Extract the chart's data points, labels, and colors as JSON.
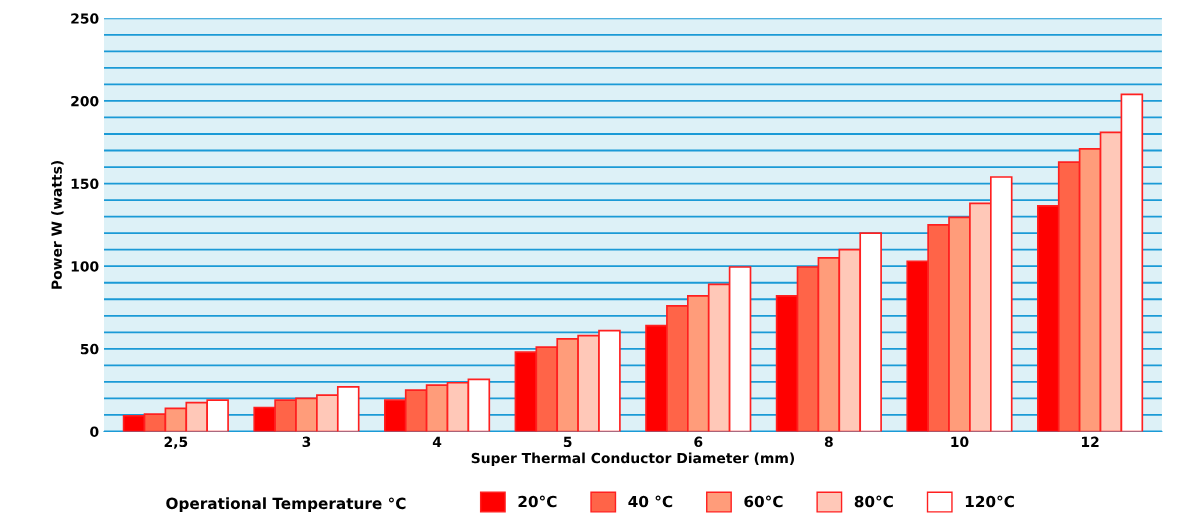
{
  "chart_data": {
    "type": "bar",
    "xlabel": "Super Thermal Conductor Diameter (mm)",
    "ylabel": "Power W (watts)",
    "legend_title": "Operational Temperature °C",
    "categories": [
      "2,5",
      "3",
      "4",
      "5",
      "6",
      "8",
      "10",
      "12"
    ],
    "series": [
      {
        "name": "20°C",
        "color": "#ff0000",
        "values": [
          9.5,
          14.5,
          19,
          48,
          64,
          82,
          103,
          136.5
        ]
      },
      {
        "name": "40 °C",
        "color": "#ff6448",
        "values": [
          10.5,
          19,
          25,
          51,
          76,
          99.5,
          125,
          163
        ]
      },
      {
        "name": "60°C",
        "color": "#ff9c7a",
        "values": [
          14,
          20,
          28,
          56,
          82,
          105,
          129.5,
          171
        ]
      },
      {
        "name": "80°C",
        "color": "#ffc8b8",
        "values": [
          17.5,
          22,
          29.5,
          58,
          89,
          110,
          138,
          181
        ]
      },
      {
        "name": "120°C",
        "color": "#ffffff",
        "values": [
          19,
          27,
          31.5,
          61,
          99.5,
          120,
          154,
          204
        ]
      }
    ],
    "ylim": [
      0,
      250
    ],
    "yticks": [
      0,
      50,
      100,
      150,
      200,
      250
    ],
    "grid": "y",
    "legend": "bottom"
  }
}
